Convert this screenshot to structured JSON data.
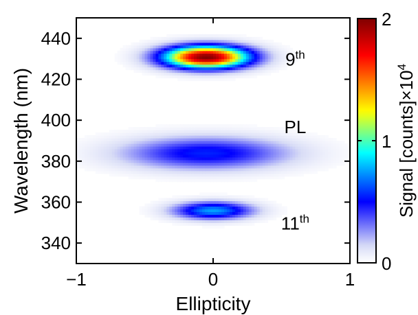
{
  "chart_data": {
    "type": "heatmap",
    "xlabel": "Ellipticity",
    "ylabel": "Wavelength (nm)",
    "xlim": [
      -1,
      1
    ],
    "ylim": [
      330,
      450
    ],
    "x_ticks": [
      -1,
      0,
      1
    ],
    "x_tick_labels": [
      "−1",
      "0",
      "1"
    ],
    "y_ticks": [
      340,
      360,
      380,
      400,
      420,
      440
    ],
    "y_tick_labels": [
      "340",
      "360",
      "380",
      "400",
      "420",
      "440"
    ],
    "grid": false,
    "colorbar": {
      "label_prefix": "Signal [counts]",
      "label_multiplier": "×10",
      "label_exponent": "4",
      "colormap": "jet",
      "range": [
        0,
        2
      ],
      "ticks": [
        0,
        1,
        2
      ],
      "tick_labels": [
        "0",
        "1",
        "2"
      ],
      "colors": [
        "#ffffff",
        "#d8dcf6",
        "#0000ff",
        "#00ffff",
        "#ffff00",
        "#ff0000",
        "#800000"
      ]
    },
    "features": [
      {
        "label_base": "9",
        "label_sup": "th",
        "center_x": -0.05,
        "center_wavelength": 431,
        "sigma_x": 0.22,
        "sigma_wavelength": 3.8,
        "peak_signal": 2.0,
        "label_x": 0.6,
        "label_wavelength": 430
      },
      {
        "label_base": "PL",
        "label_sup": "",
        "center_x": -0.05,
        "center_wavelength": 384,
        "sigma_x": 0.42,
        "sigma_wavelength": 5.5,
        "peak_signal": 0.55,
        "label_x": 0.6,
        "label_wavelength": 397
      },
      {
        "label_base": "11",
        "label_sup": "th",
        "center_x": 0.0,
        "center_wavelength": 356,
        "sigma_x": 0.2,
        "sigma_wavelength": 3.0,
        "peak_signal": 0.75,
        "label_x": 0.6,
        "label_wavelength": 350
      }
    ]
  }
}
